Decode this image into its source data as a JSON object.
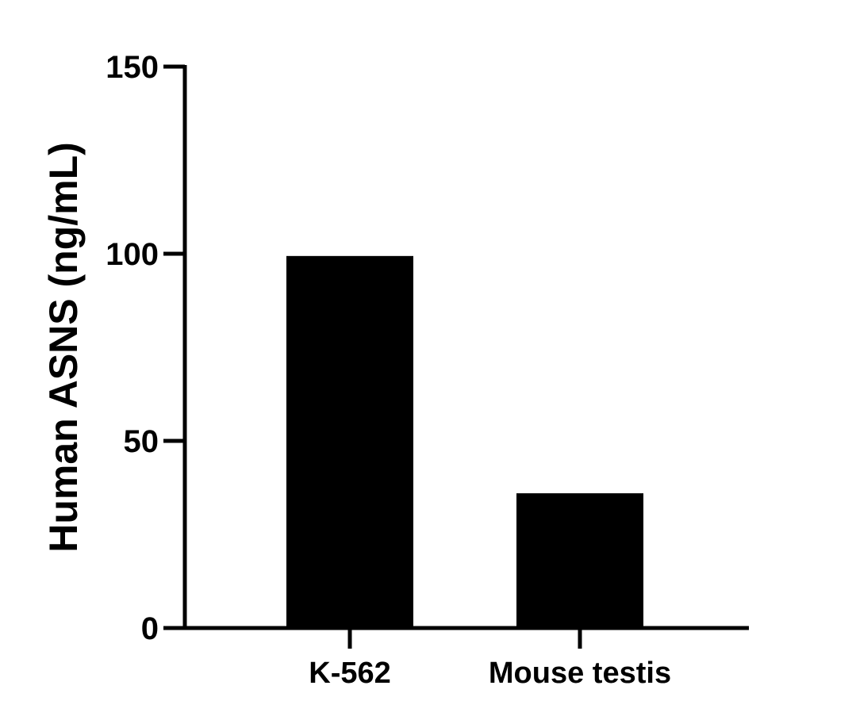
{
  "chart_data": {
    "type": "bar",
    "title": "",
    "xlabel": "",
    "ylabel": "Human ASNS (ng/mL)",
    "categories": [
      "K-562",
      "Mouse testis"
    ],
    "values": [
      99.4,
      36.0
    ],
    "ylim": [
      0,
      150
    ],
    "yticks": [
      0,
      50,
      100,
      150
    ],
    "grid": false,
    "legend": null,
    "bar_color": "#000000"
  },
  "colors": {
    "axis": "#000000",
    "bar": "#000000",
    "background": "#ffffff"
  }
}
